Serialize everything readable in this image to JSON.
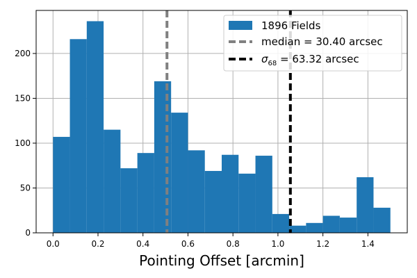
{
  "chart_data": {
    "type": "bar",
    "subtype": "histogram",
    "xlabel": "Pointing Offset [arcmin]",
    "ylabel": "",
    "xlim": [
      -0.075,
      1.575
    ],
    "ylim": [
      0,
      248
    ],
    "x_ticks": [
      0.0,
      0.2,
      0.4,
      0.6,
      0.8,
      1.0,
      1.2,
      1.4
    ],
    "x_tick_labels": [
      "0.0",
      "0.2",
      "0.4",
      "0.6",
      "0.8",
      "1.0",
      "1.2",
      "1.4"
    ],
    "y_ticks": [
      0,
      50,
      100,
      150,
      200
    ],
    "y_tick_labels": [
      "0",
      "50",
      "100",
      "150",
      "200"
    ],
    "grid": true,
    "bin_edges": [
      0.0,
      0.075,
      0.15,
      0.225,
      0.3,
      0.375,
      0.45,
      0.525,
      0.6,
      0.675,
      0.75,
      0.825,
      0.9,
      0.975,
      1.05,
      1.125,
      1.2,
      1.275,
      1.35,
      1.425,
      1.5
    ],
    "counts": [
      107,
      216,
      236,
      115,
      72,
      89,
      169,
      134,
      92,
      69,
      87,
      66,
      86,
      21,
      8,
      11,
      19,
      17,
      62,
      28
    ],
    "bar_color": "#1f77b4",
    "vlines": [
      {
        "x": 0.5067,
        "color": "#808080",
        "style": "dashed",
        "label_text": "median = 30.40 arcsec"
      },
      {
        "x": 1.0553,
        "color": "#000000",
        "style": "dashed",
        "label_sym": "σ",
        "label_sub": "68",
        "label_rest": " = 63.32 arcsec"
      }
    ],
    "legend": {
      "placement": "top-right",
      "entries": [
        {
          "kind": "patch",
          "label": "1896 Fields",
          "color": "#1f77b4"
        },
        {
          "kind": "line",
          "label": "median = 30.40 arcsec",
          "color": "#808080"
        },
        {
          "kind": "line",
          "label_sym": "σ",
          "label_sub": "68",
          "label_rest": " = 63.32 arcsec",
          "color": "#000000"
        }
      ]
    }
  }
}
